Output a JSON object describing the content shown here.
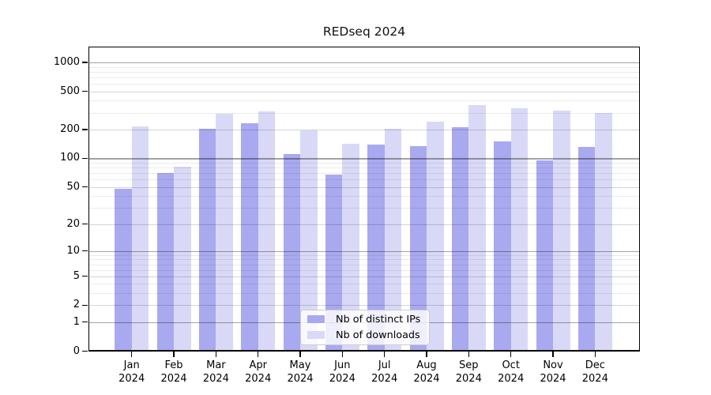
{
  "chart_data": {
    "type": "bar",
    "title": "REDseq 2024",
    "categories": [
      "Jan 2024",
      "Feb 2024",
      "Mar 2024",
      "Apr 2024",
      "May 2024",
      "Jun 2024",
      "Jul 2024",
      "Aug 2024",
      "Sep 2024",
      "Oct 2024",
      "Nov 2024",
      "Dec 2024"
    ],
    "x_tick_month": [
      "Jan",
      "Feb",
      "Mar",
      "Apr",
      "May",
      "Jun",
      "Jul",
      "Aug",
      "Sep",
      "Oct",
      "Nov",
      "Dec"
    ],
    "x_tick_year": "2024",
    "series": [
      {
        "name": "Nb of distinct IPs",
        "color": "#a9a9f0",
        "values": [
          48,
          70,
          203,
          235,
          111,
          67,
          139,
          134,
          212,
          150,
          96,
          131
        ]
      },
      {
        "name": "Nb of downloads",
        "color": "#d9d9f7",
        "values": [
          216,
          81,
          292,
          310,
          196,
          142,
          202,
          240,
          358,
          336,
          315,
          300
        ]
      }
    ],
    "yscale": "log10(1+x)",
    "ylim": [
      0,
      1500
    ],
    "y_ticks": [
      0,
      1,
      2,
      5,
      10,
      20,
      50,
      100,
      200,
      500,
      1000
    ],
    "y_decade_lines": [
      1,
      10,
      100,
      1000
    ],
    "y_minor_gridlines": [
      3,
      4,
      6,
      7,
      8,
      9,
      30,
      40,
      60,
      70,
      80,
      90,
      300,
      400,
      600,
      700,
      800,
      900
    ],
    "grid": "horizontal",
    "legend_position": "inside lower center"
  },
  "colors": {
    "background": "#ffffff",
    "axis": "#000000",
    "text": "#000000",
    "grid_decade": "rgba(0,0,0,0.36)",
    "grid_labeled": "rgba(0,0,0,0.17)",
    "grid_minor": "rgba(0,0,0,0.08)",
    "legend_border": "#cccccc",
    "legend_bg": "rgba(255,255,255,0.8)"
  }
}
